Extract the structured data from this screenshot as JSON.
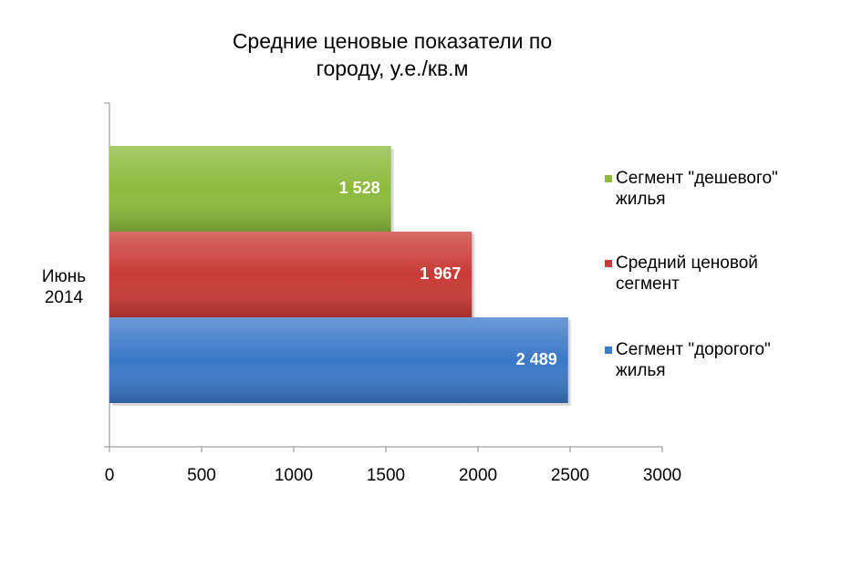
{
  "chart_data": {
    "type": "barh",
    "title": "Средние ценовые показатели по городу, у.е./кв.м",
    "categories": [
      "Июнь 2014"
    ],
    "series": [
      {
        "name": "Сегмент \"дешевого\" жилья",
        "color": "#8cba3c",
        "values": [
          1528
        ],
        "value_labels": [
          "1 528"
        ]
      },
      {
        "name": "Средний ценовой сегмент",
        "color": "#c83a36",
        "values": [
          1967
        ],
        "value_labels": [
          "1 967"
        ]
      },
      {
        "name": "Сегмент \"дорогого\" жилья",
        "color": "#3b78c8",
        "values": [
          2489
        ],
        "value_labels": [
          "2 489"
        ]
      }
    ],
    "xlim": [
      0,
      3000
    ],
    "xticks": [
      0,
      500,
      1000,
      1500,
      2000,
      2500,
      3000
    ],
    "grid": false,
    "legend": "right"
  }
}
